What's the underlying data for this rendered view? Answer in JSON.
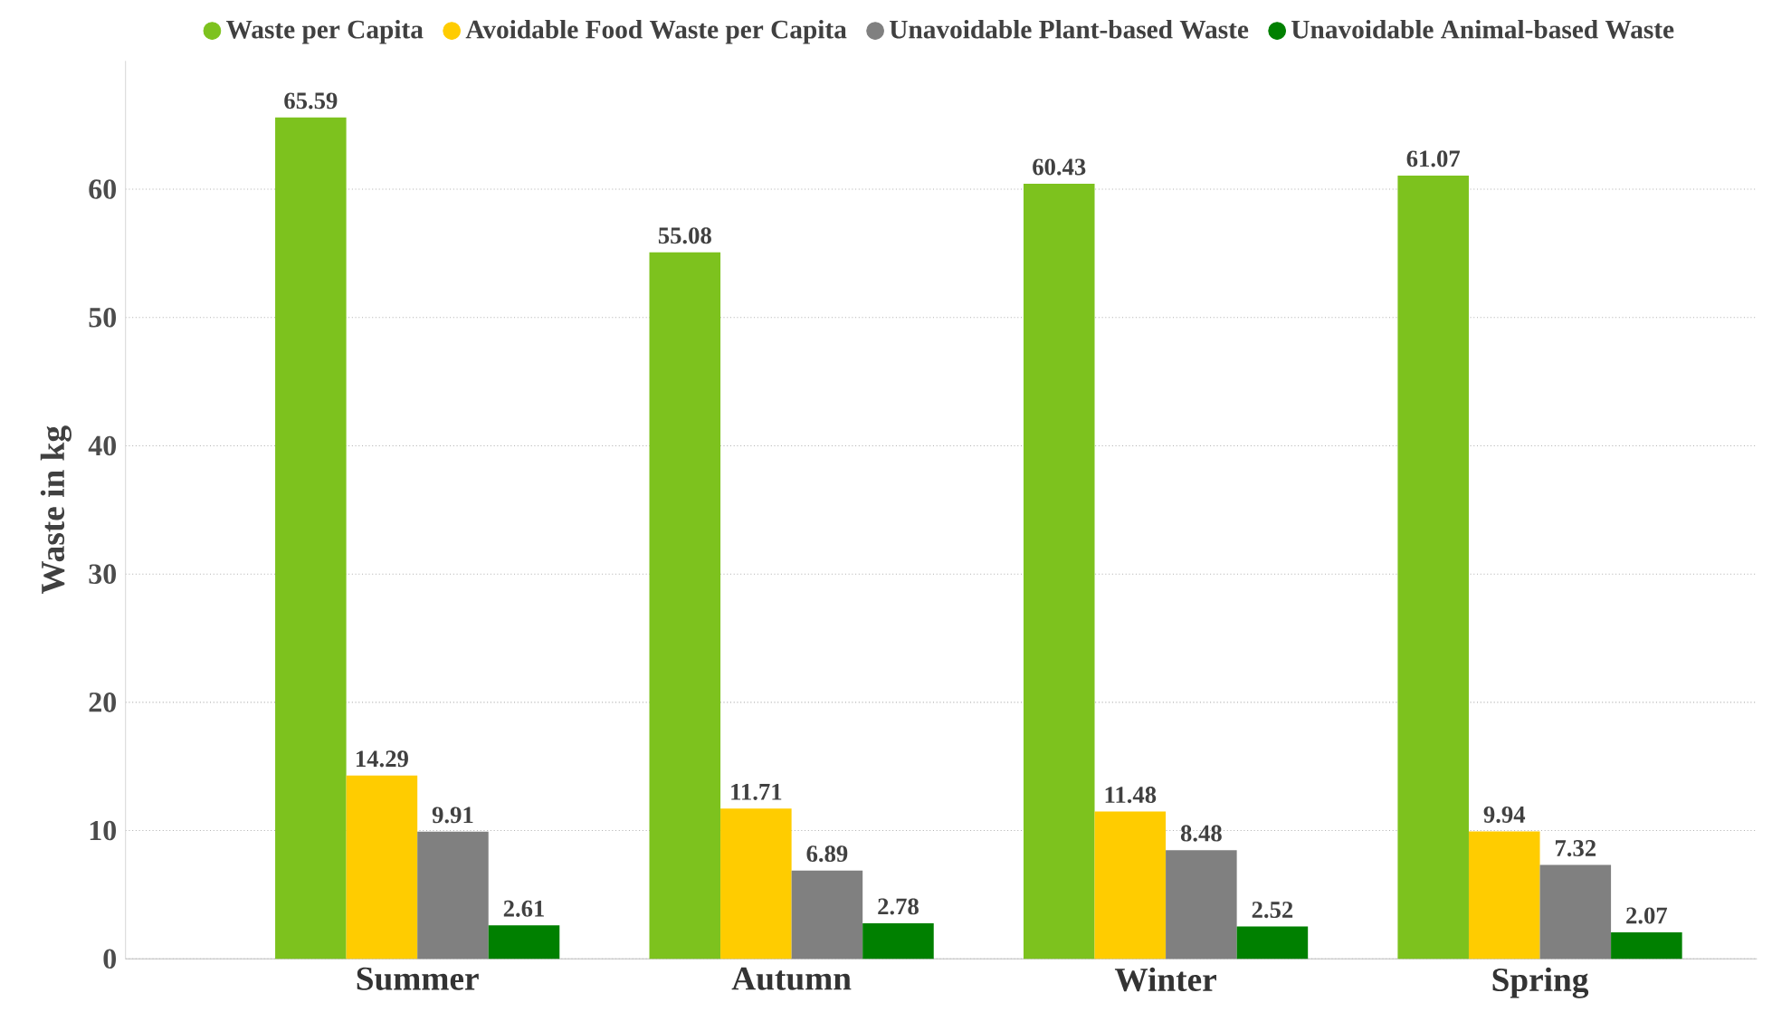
{
  "chart_data": {
    "type": "bar",
    "ylabel": "Waste in kg",
    "categories": [
      "Summer",
      "Autumn",
      "Winter",
      "Spring"
    ],
    "series": [
      {
        "name": "Waste per Capita",
        "color": "#7dc21e",
        "values": [
          65.59,
          55.08,
          60.43,
          61.07
        ]
      },
      {
        "name": "Avoidable Food Waste per Capita",
        "color": "#ffcc00",
        "values": [
          14.29,
          11.71,
          11.48,
          9.94
        ]
      },
      {
        "name": "Unavoidable Plant-based Waste",
        "color": "#808080",
        "values": [
          9.91,
          6.89,
          8.48,
          7.32
        ]
      },
      {
        "name": "Unavoidable Animal-based Waste",
        "color": "#008000",
        "values": [
          2.61,
          2.78,
          2.52,
          2.07
        ]
      }
    ],
    "ylim": [
      0,
      70
    ],
    "yticks": [
      0,
      10,
      20,
      30,
      40,
      50,
      60
    ],
    "grid": "y",
    "legend": "top",
    "data_labels": true
  }
}
